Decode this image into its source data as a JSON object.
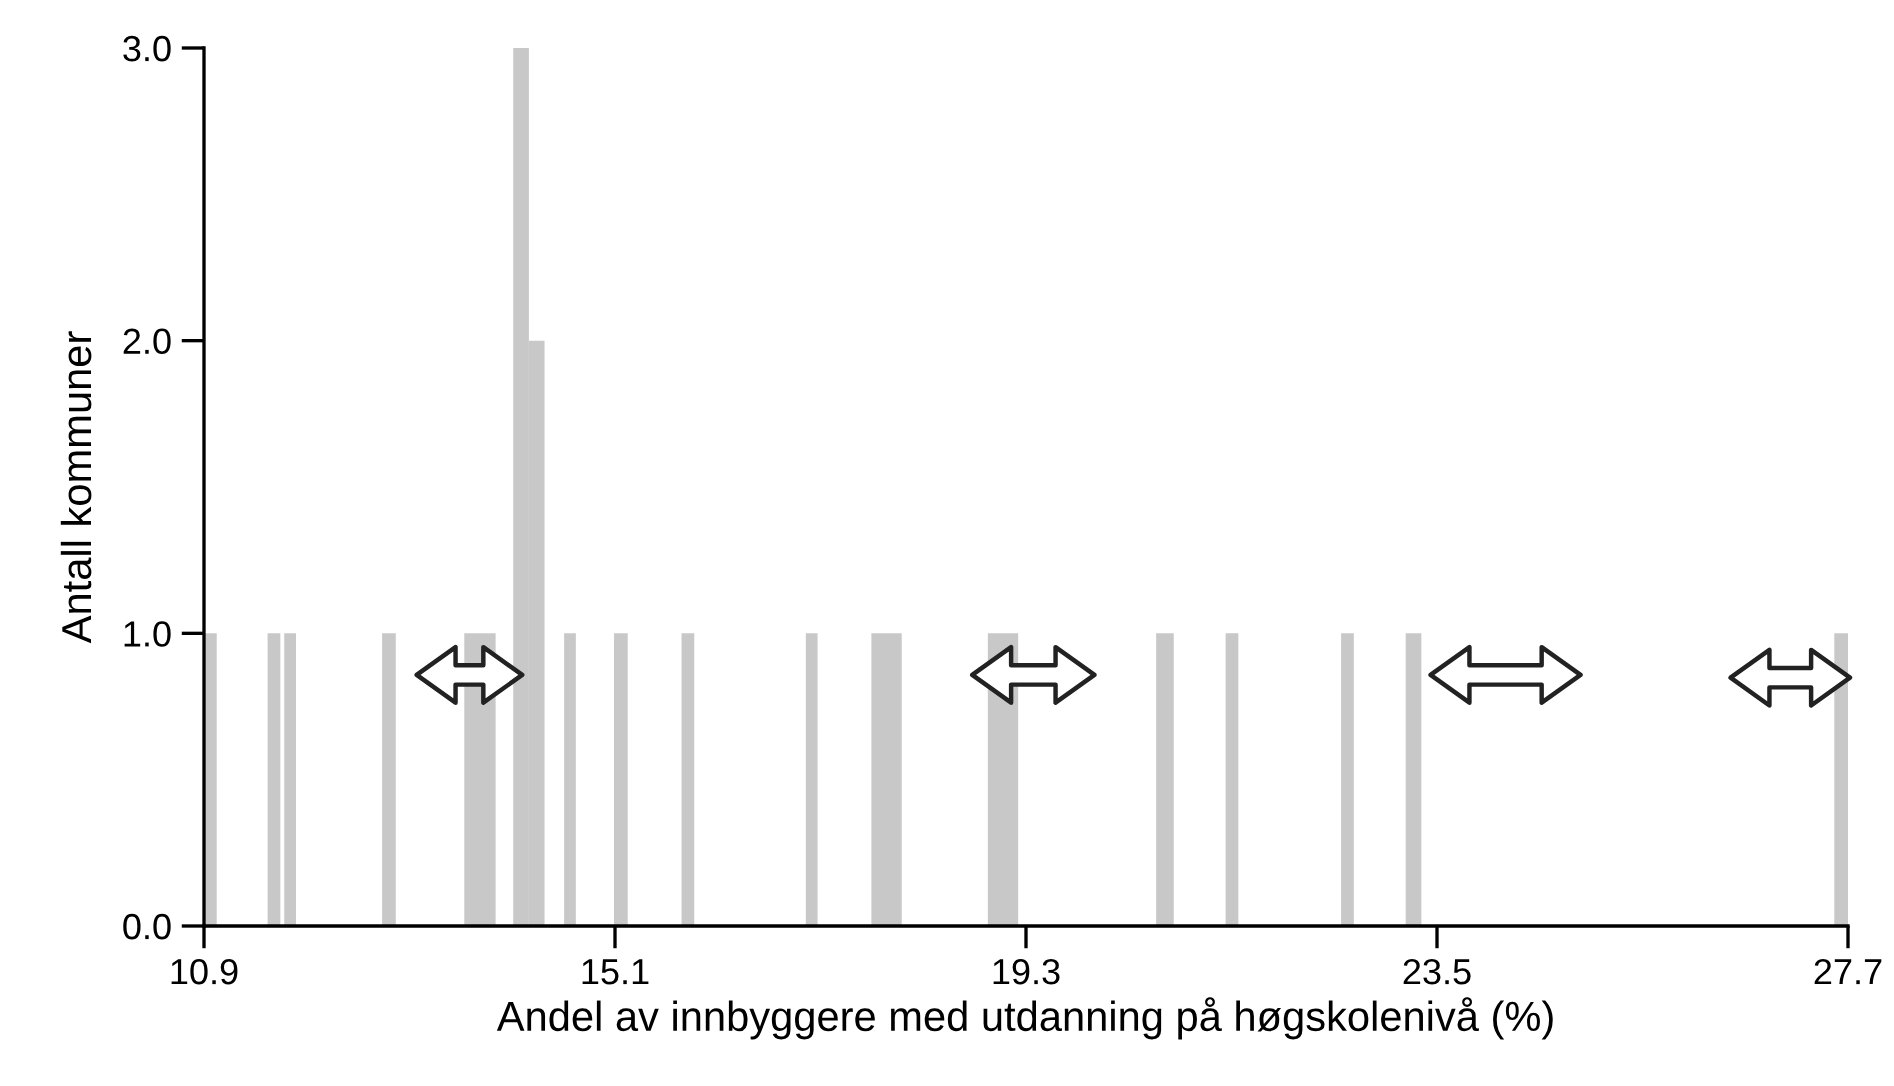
{
  "chart_data": {
    "type": "histogram",
    "xlabel": "Andel av innbyggere med utdanning på høgskolenivå (%)",
    "ylabel": "Antall kommuner",
    "bins": [
      10.9,
      11.03,
      11.55,
      11.68,
      11.72,
      11.84,
      12.72,
      12.86,
      13.56,
      13.88,
      14.06,
      14.22,
      14.38,
      14.58,
      14.7,
      15.09,
      15.23,
      15.78,
      15.91,
      17.05,
      17.17,
      17.72,
      18.03,
      18.91,
      19.22,
      20.63,
      20.81,
      21.34,
      21.47,
      22.52,
      22.65,
      23.18,
      23.34,
      27.56,
      27.7
    ],
    "values": [
      1,
      0,
      1,
      0,
      1,
      0,
      1,
      0,
      1,
      0,
      3,
      2,
      0,
      1,
      0,
      1,
      0,
      1,
      0,
      1,
      0,
      1,
      0,
      1,
      0,
      1,
      0,
      1,
      0,
      1,
      0,
      1,
      0,
      1
    ],
    "color": "#c8c8c8",
    "xlim": [
      10.9,
      27.7
    ],
    "xticks": [
      10.9,
      15.1,
      19.3,
      23.5,
      27.7
    ],
    "ylim": [
      0,
      3
    ],
    "yticks": [
      {
        "value": 0,
        "label": "0.0"
      },
      {
        "value": 1,
        "label": "1.0"
      },
      {
        "value": 2,
        "label": "2.0"
      },
      {
        "value": 3,
        "label": "3.0"
      }
    ],
    "grid": false
  }
}
